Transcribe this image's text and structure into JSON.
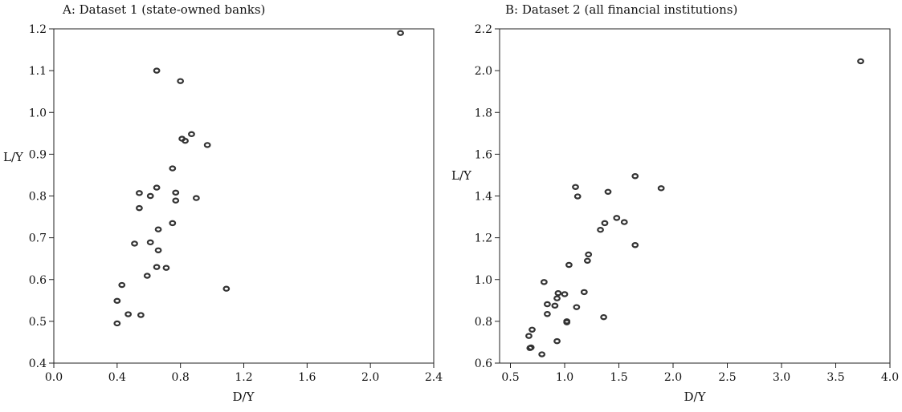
{
  "chart_data": [
    {
      "type": "scatter",
      "title": "A: Dataset 1 (state-owned banks)",
      "xlabel": "D/Y",
      "ylabel": "L/Y",
      "xlim": [
        0.0,
        2.4
      ],
      "ylim": [
        0.4,
        1.2
      ],
      "xticks": [
        "0.0",
        "0.4",
        "0.8",
        "1.2",
        "1.6",
        "2.0",
        "2.4"
      ],
      "yticks": [
        "0.4",
        "0.5",
        "0.6",
        "0.7",
        "0.8",
        "0.9",
        "1.0",
        "1.1",
        "1.2"
      ],
      "grid": false,
      "points": [
        {
          "x": 2.19,
          "y": 1.19
        },
        {
          "x": 0.65,
          "y": 1.1
        },
        {
          "x": 0.8,
          "y": 1.075
        },
        {
          "x": 0.87,
          "y": 0.948
        },
        {
          "x": 0.81,
          "y": 0.937
        },
        {
          "x": 0.83,
          "y": 0.932
        },
        {
          "x": 0.97,
          "y": 0.922
        },
        {
          "x": 0.75,
          "y": 0.866
        },
        {
          "x": 0.65,
          "y": 0.82
        },
        {
          "x": 0.54,
          "y": 0.807
        },
        {
          "x": 0.77,
          "y": 0.808
        },
        {
          "x": 0.61,
          "y": 0.8
        },
        {
          "x": 0.9,
          "y": 0.795
        },
        {
          "x": 0.77,
          "y": 0.789
        },
        {
          "x": 0.54,
          "y": 0.771
        },
        {
          "x": 0.75,
          "y": 0.735
        },
        {
          "x": 0.66,
          "y": 0.72
        },
        {
          "x": 0.51,
          "y": 0.686
        },
        {
          "x": 0.61,
          "y": 0.689
        },
        {
          "x": 0.66,
          "y": 0.67
        },
        {
          "x": 0.65,
          "y": 0.63
        },
        {
          "x": 0.71,
          "y": 0.628
        },
        {
          "x": 0.59,
          "y": 0.609
        },
        {
          "x": 0.43,
          "y": 0.587
        },
        {
          "x": 1.09,
          "y": 0.578
        },
        {
          "x": 0.4,
          "y": 0.549
        },
        {
          "x": 0.47,
          "y": 0.517
        },
        {
          "x": 0.55,
          "y": 0.515
        },
        {
          "x": 0.4,
          "y": 0.495
        }
      ]
    },
    {
      "type": "scatter",
      "title": "B: Dataset 2 (all financial institutions)",
      "xlabel": "D/Y",
      "ylabel": "L/Y",
      "xlim": [
        0.4,
        4.0
      ],
      "ylim": [
        0.6,
        2.2
      ],
      "xticks": [
        "0.5",
        "1.0",
        "1.5",
        "2.0",
        "2.5",
        "3.0",
        "3.5",
        "4.0"
      ],
      "yticks": [
        "0.6",
        "0.8",
        "1.0",
        "1.2",
        "1.4",
        "1.6",
        "1.8",
        "2.0",
        "2.2"
      ],
      "grid": false,
      "points": [
        {
          "x": 3.73,
          "y": 2.045
        },
        {
          "x": 1.65,
          "y": 1.495
        },
        {
          "x": 1.89,
          "y": 1.437
        },
        {
          "x": 1.1,
          "y": 1.443
        },
        {
          "x": 1.4,
          "y": 1.42
        },
        {
          "x": 1.12,
          "y": 1.398
        },
        {
          "x": 1.48,
          "y": 1.295
        },
        {
          "x": 1.37,
          "y": 1.27
        },
        {
          "x": 1.55,
          "y": 1.275
        },
        {
          "x": 1.33,
          "y": 1.238
        },
        {
          "x": 1.65,
          "y": 1.165
        },
        {
          "x": 1.22,
          "y": 1.12
        },
        {
          "x": 1.21,
          "y": 1.09
        },
        {
          "x": 1.04,
          "y": 1.07
        },
        {
          "x": 0.81,
          "y": 0.988
        },
        {
          "x": 0.94,
          "y": 0.935
        },
        {
          "x": 1.0,
          "y": 0.93
        },
        {
          "x": 1.18,
          "y": 0.94
        },
        {
          "x": 0.93,
          "y": 0.91
        },
        {
          "x": 0.84,
          "y": 0.882
        },
        {
          "x": 0.91,
          "y": 0.875
        },
        {
          "x": 1.11,
          "y": 0.868
        },
        {
          "x": 0.84,
          "y": 0.835
        },
        {
          "x": 1.36,
          "y": 0.82
        },
        {
          "x": 1.02,
          "y": 0.8
        },
        {
          "x": 1.02,
          "y": 0.795
        },
        {
          "x": 0.7,
          "y": 0.76
        },
        {
          "x": 0.67,
          "y": 0.73
        },
        {
          "x": 0.93,
          "y": 0.705
        },
        {
          "x": 0.69,
          "y": 0.675
        },
        {
          "x": 0.68,
          "y": 0.672
        },
        {
          "x": 0.79,
          "y": 0.642
        }
      ]
    }
  ]
}
